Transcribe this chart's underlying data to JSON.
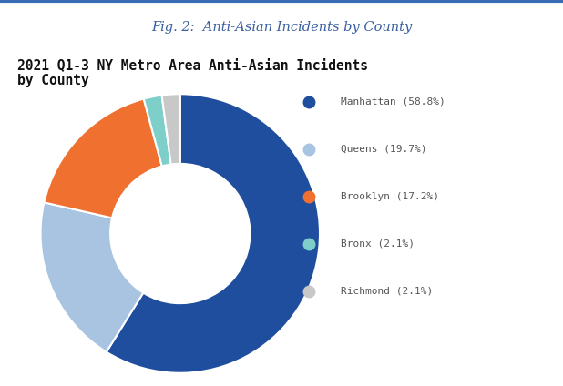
{
  "fig_title": "Fig. 2:  Anti-Asian Incidents by County",
  "chart_title": "2021 Q1-3 NY Metro Area Anti-Asian Incidents\nby County",
  "labels": [
    "Manhattan",
    "Queens",
    "Brooklyn",
    "Bronx",
    "Richmond"
  ],
  "percentages": [
    58.8,
    19.7,
    17.2,
    2.1,
    2.1
  ],
  "colors": [
    "#1f4e9e",
    "#a8c4e0",
    "#f07030",
    "#7ececa",
    "#c8c8c8"
  ],
  "legend_labels": [
    "Manhattan (58.8%)",
    "Queens (19.7%)",
    "Brooklyn (17.2%)",
    "Bronx (2.1%)",
    "Richmond (2.1%)"
  ],
  "background_color": "#e8e8e8",
  "header_background": "#ffffff",
  "header_border_color": "#3a6cb5",
  "fig_title_color": "#3a5f9f",
  "chart_title_color": "#111111",
  "legend_text_color": "#555555",
  "logo_color": "#2a5caa"
}
